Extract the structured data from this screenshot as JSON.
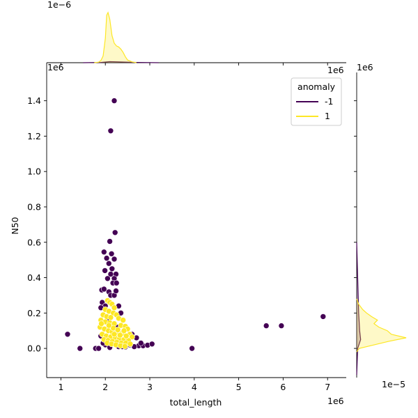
{
  "chart_data": {
    "type": "scatter",
    "title": "",
    "xlabel": "total_length",
    "ylabel": "N50",
    "x_offset_label": "1e6",
    "y_offset_label": "1e6",
    "top_density_offset_label": "1e−6",
    "right_density_offset_label": "1e−5",
    "top_axis_offset_label": "1e6",
    "right_axis_offset_label": "1e6",
    "xlim": [
      0.68,
      7.42
    ],
    "ylim": [
      -0.165,
      1.56
    ],
    "xticks": [
      1,
      2,
      3,
      4,
      5,
      6,
      7
    ],
    "xtick_labels": [
      "1",
      "2",
      "3",
      "4",
      "5",
      "6",
      "7"
    ],
    "yticks": [
      0.0,
      0.2,
      0.4,
      0.6,
      0.8,
      1.0,
      1.2,
      1.4
    ],
    "ytick_labels": [
      "0.0",
      "0.2",
      "0.4",
      "0.6",
      "0.8",
      "1.0",
      "1.2",
      "1.4"
    ],
    "legend": {
      "title": "anomaly",
      "placement": "top-right",
      "entries": [
        {
          "label": "-1",
          "color": "#440154"
        },
        {
          "label": "1",
          "color": "#fde725"
        }
      ]
    },
    "series": [
      {
        "name": "-1",
        "color": "#440154",
        "points": [
          [
            2.2,
            1.4
          ],
          [
            2.12,
            1.23
          ],
          [
            2.22,
            0.655
          ],
          [
            2.1,
            0.605
          ],
          [
            1.97,
            0.545
          ],
          [
            2.14,
            0.535
          ],
          [
            2.03,
            0.51
          ],
          [
            2.2,
            0.505
          ],
          [
            2.08,
            0.48
          ],
          [
            2.15,
            0.45
          ],
          [
            1.99,
            0.44
          ],
          [
            2.24,
            0.42
          ],
          [
            2.12,
            0.42
          ],
          [
            2.05,
            0.395
          ],
          [
            2.2,
            0.395
          ],
          [
            2.17,
            0.37
          ],
          [
            2.25,
            0.37
          ],
          [
            1.92,
            0.33
          ],
          [
            1.97,
            0.335
          ],
          [
            2.08,
            0.32
          ],
          [
            2.12,
            0.3
          ],
          [
            2.2,
            0.3
          ],
          [
            2.24,
            0.325
          ],
          [
            1.93,
            0.26
          ],
          [
            2.0,
            0.24
          ],
          [
            2.3,
            0.24
          ],
          [
            1.9,
            0.23
          ],
          [
            2.35,
            0.2
          ],
          [
            2.05,
            0.17
          ],
          [
            2.28,
            0.12
          ],
          [
            2.6,
            0.08
          ],
          [
            2.7,
            0.06
          ],
          [
            2.5,
            0.04
          ],
          [
            2.75,
            0.015
          ],
          [
            2.85,
            0.015
          ],
          [
            2.95,
            0.018
          ],
          [
            3.05,
            0.025
          ],
          [
            2.65,
            0.01
          ],
          [
            2.45,
            0.008
          ],
          [
            2.3,
            0.01
          ],
          [
            2.0,
            0.02
          ],
          [
            1.95,
            0.03
          ],
          [
            1.9,
            0.07
          ],
          [
            2.38,
            0.01
          ],
          [
            2.55,
            0.02
          ],
          [
            1.15,
            0.08
          ],
          [
            1.43,
            0.0
          ],
          [
            1.78,
            0.0
          ],
          [
            3.95,
            0.0
          ],
          [
            5.62,
            0.128
          ],
          [
            5.96,
            0.128
          ],
          [
            6.9,
            0.18
          ],
          [
            1.85,
            0.0
          ],
          [
            2.1,
            0.005
          ],
          [
            2.8,
            0.03
          ]
        ]
      },
      {
        "name": "1",
        "color": "#fde725",
        "points": [
          [
            2.05,
            0.27
          ],
          [
            2.1,
            0.26
          ],
          [
            2.15,
            0.25
          ],
          [
            2.2,
            0.23
          ],
          [
            2.0,
            0.22
          ],
          [
            2.08,
            0.21
          ],
          [
            2.18,
            0.2
          ],
          [
            2.25,
            0.19
          ],
          [
            1.95,
            0.19
          ],
          [
            2.03,
            0.18
          ],
          [
            2.12,
            0.175
          ],
          [
            2.3,
            0.17
          ],
          [
            2.4,
            0.16
          ],
          [
            1.9,
            0.16
          ],
          [
            2.0,
            0.15
          ],
          [
            2.1,
            0.145
          ],
          [
            2.2,
            0.14
          ],
          [
            2.35,
            0.13
          ],
          [
            2.45,
            0.125
          ],
          [
            2.5,
            0.11
          ],
          [
            1.88,
            0.12
          ],
          [
            1.98,
            0.11
          ],
          [
            2.07,
            0.1
          ],
          [
            2.15,
            0.095
          ],
          [
            2.25,
            0.09
          ],
          [
            2.38,
            0.085
          ],
          [
            2.55,
            0.08
          ],
          [
            2.6,
            0.065
          ],
          [
            1.93,
            0.08
          ],
          [
            2.02,
            0.07
          ],
          [
            2.12,
            0.065
          ],
          [
            2.22,
            0.06
          ],
          [
            2.32,
            0.055
          ],
          [
            2.42,
            0.05
          ],
          [
            2.52,
            0.045
          ],
          [
            1.97,
            0.05
          ],
          [
            2.06,
            0.045
          ],
          [
            2.16,
            0.04
          ],
          [
            2.26,
            0.035
          ],
          [
            2.36,
            0.03
          ],
          [
            2.46,
            0.03
          ],
          [
            2.56,
            0.025
          ],
          [
            2.04,
            0.03
          ],
          [
            2.14,
            0.025
          ],
          [
            2.24,
            0.02
          ],
          [
            2.34,
            0.015
          ],
          [
            2.44,
            0.012
          ],
          [
            2.18,
            0.115
          ],
          [
            2.28,
            0.105
          ],
          [
            2.08,
            0.13
          ],
          [
            1.91,
            0.14
          ],
          [
            2.42,
            0.1
          ],
          [
            2.33,
            0.075
          ],
          [
            2.47,
            0.07
          ],
          [
            2.2,
            0.08
          ]
        ]
      }
    ],
    "marginal_x": {
      "title": "",
      "series": [
        {
          "name": "-1",
          "color": "#440154",
          "x": [
            1.5,
            1.9,
            2.1,
            2.3,
            2.7,
            3.2
          ],
          "density": [
            0,
            0.01,
            0.04,
            0.03,
            0.01,
            0
          ]
        },
        {
          "name": "1",
          "color": "#fde725",
          "x": [
            1.75,
            1.85,
            1.9,
            1.95,
            2.0,
            2.03,
            2.06,
            2.1,
            2.15,
            2.2,
            2.25,
            2.3,
            2.35,
            2.4,
            2.45,
            2.5,
            2.6,
            2.7
          ],
          "density": [
            0.0,
            0.02,
            0.08,
            0.25,
            0.9,
            1.75,
            1.85,
            1.6,
            1.0,
            0.72,
            0.62,
            0.58,
            0.5,
            0.38,
            0.22,
            0.1,
            0.03,
            0.0
          ]
        }
      ]
    },
    "marginal_y": {
      "series": [
        {
          "name": "-1",
          "color": "#440154",
          "y": [
            -0.15,
            0.0,
            0.05,
            0.1,
            0.2,
            0.4,
            0.6
          ],
          "density": [
            0.0,
            0.02,
            0.08,
            0.06,
            0.04,
            0.02,
            0.0
          ]
        },
        {
          "name": "1",
          "color": "#fde725",
          "y": [
            -0.02,
            0.0,
            0.02,
            0.04,
            0.06,
            0.08,
            0.1,
            0.12,
            0.14,
            0.16,
            0.18,
            0.2,
            0.22,
            0.25,
            0.28
          ],
          "density": [
            0.0,
            0.05,
            0.35,
            0.65,
            1.0,
            0.7,
            0.62,
            0.45,
            0.35,
            0.42,
            0.3,
            0.2,
            0.12,
            0.04,
            0.0
          ]
        }
      ]
    }
  }
}
